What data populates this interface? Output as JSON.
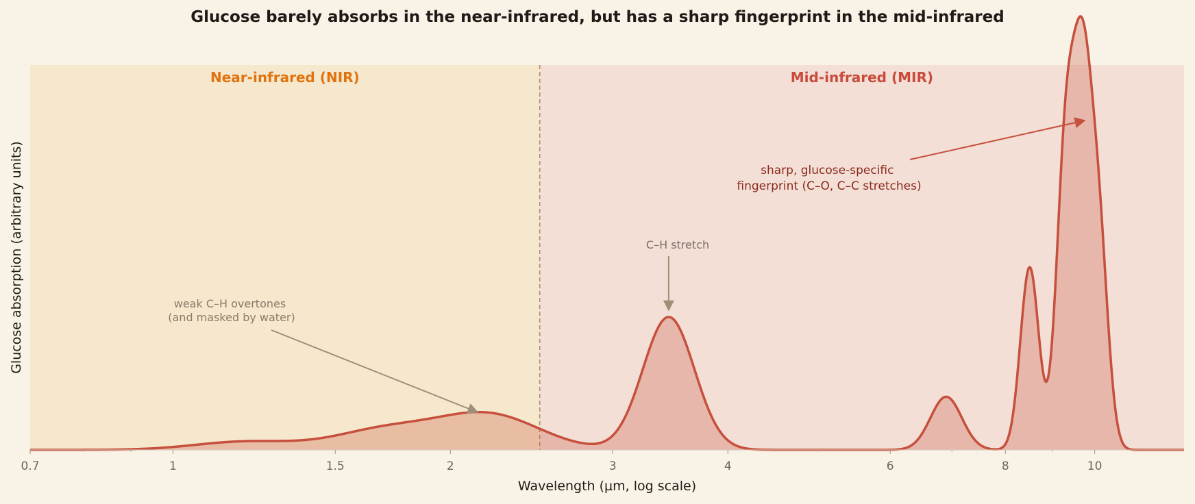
{
  "chart_data": {
    "type": "area",
    "title": "Glucose barely absorbs in the near-infrared, but has a sharp fingerprint in the mid-infrared",
    "xlabel": "Wavelength (µm, log scale)",
    "ylabel": "Glucose absorption (arbitrary units)",
    "x_scale": "log",
    "xlim": [
      0.7,
      12.5
    ],
    "ylim": [
      0,
      1.0
    ],
    "x_ticks": [
      0.7,
      1,
      1.5,
      2,
      3,
      4,
      6,
      8,
      10
    ],
    "x_tick_labels": [
      "0.7",
      "1",
      "1.5",
      "2",
      "3",
      "4",
      "6",
      "8",
      "10"
    ],
    "grid": false,
    "boundary_um": 2.5,
    "regions": [
      {
        "label": "Near-infrared (NIR)",
        "from": 0.7,
        "to": 2.5,
        "color": "#f6e8cc",
        "label_color": "#e07310"
      },
      {
        "label": "Mid-infrared (MIR)",
        "from": 2.5,
        "to": 12.5,
        "color": "#f3dfd5",
        "label_color": "#c94b3c"
      }
    ],
    "series": [
      {
        "color": "#c64f3d",
        "peaks": [
          {
            "center": 1.2,
            "height": 0.025
          },
          {
            "center": 1.7,
            "height": 0.06
          },
          {
            "center": 2.2,
            "height": 0.105
          },
          {
            "center": 3.45,
            "height": 0.4
          },
          {
            "center": 6.9,
            "height": 0.16
          },
          {
            "center": 8.5,
            "height": 0.55
          },
          {
            "center": 9.3,
            "height": 0.88
          },
          {
            "center": 9.7,
            "height": 1.0
          },
          {
            "center": 10.1,
            "height": 0.62
          }
        ]
      }
    ],
    "annotations": [
      {
        "text": [
          "weak C–H overtones",
          "(and masked by water)"
        ],
        "color": "#8a7a6a"
      },
      {
        "text": [
          "C–H stretch"
        ],
        "color": "#7a6e66"
      },
      {
        "text": [
          "sharp, glucose-specific",
          "fingerprint (C–O, C–C stretches)"
        ],
        "color": "#8b2a1e"
      }
    ]
  }
}
